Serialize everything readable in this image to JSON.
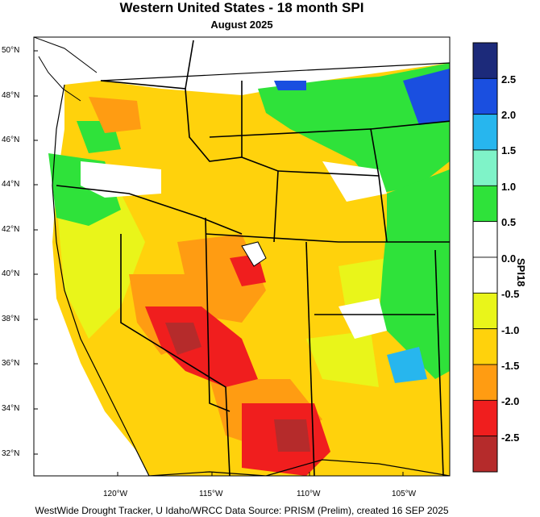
{
  "header": {
    "title": "Western United States - 18 month SPI",
    "subtitle": "August 2025"
  },
  "footer": {
    "credit": "WestWide Drought Tracker, U Idaho/WRCC Data Source: PRISM (Prelim), created 16 SEP 2025"
  },
  "map": {
    "lat_labels": [
      "50°N",
      "48°N",
      "46°N",
      "44°N",
      "42°N",
      "40°N",
      "38°N",
      "36°N",
      "34°N",
      "32°N"
    ],
    "lon_labels": [
      "120°W",
      "115°W",
      "110°W",
      "105°W"
    ]
  },
  "legend": {
    "title": "SPI18",
    "ticks": [
      "2.5",
      "2.0",
      "1.5",
      "1.0",
      "0.5",
      "0.0",
      "-0.5",
      "-1.0",
      "-1.5",
      "-2.0",
      "-2.5"
    ],
    "colors": [
      "#1c2a7a",
      "#1a4fe0",
      "#27b6ee",
      "#7ff3c8",
      "#2fe23a",
      "#ffffff",
      "#ffffff",
      "#e9f51a",
      "#ffd20c",
      "#ff9c12",
      "#f01e1e",
      "#b52b2b"
    ]
  },
  "colors": {
    "wet_strong": "#1a4fe0",
    "wet": "#2fe23a",
    "neutral": "#ffffff",
    "dry": "#ffd20c",
    "dry_strong": "#f01e1e",
    "dry_extreme": "#b52b2b"
  }
}
